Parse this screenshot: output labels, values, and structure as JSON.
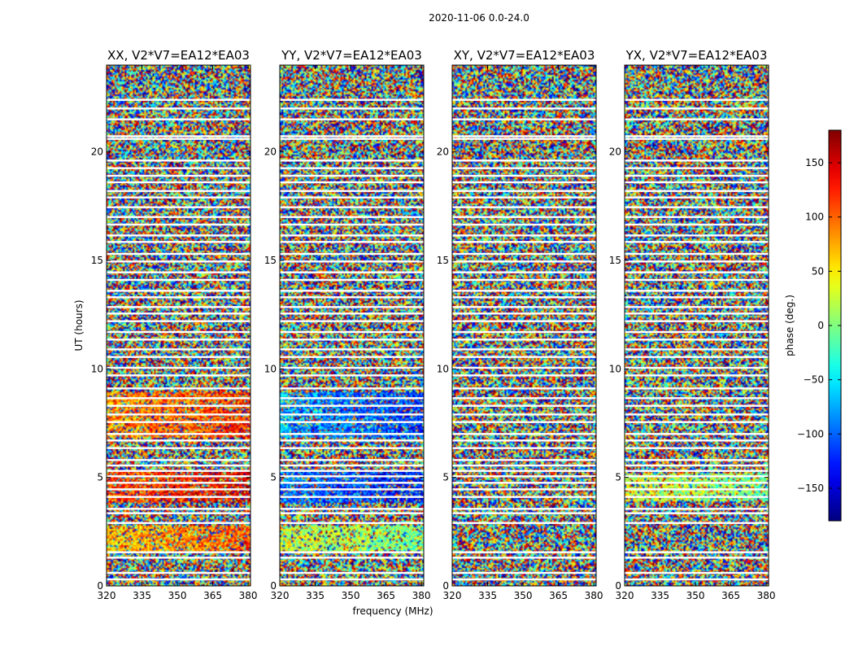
{
  "chart_data": {
    "type": "heatmap",
    "suptitle": "2020-11-06 0.0-24.0",
    "xlabel": "frequency (MHz)",
    "ylabel": "UT (hours)",
    "xlim": [
      320,
      381
    ],
    "ylim": [
      0,
      24
    ],
    "xticks": [
      320,
      335,
      350,
      365,
      380
    ],
    "yticks": [
      0,
      5,
      10,
      15,
      20
    ],
    "panels": [
      {
        "title": "XX, V2*V7=EA12*EA03",
        "coherent": [
          [
            1.6,
            2.8,
            0.35
          ],
          [
            3.8,
            5.3,
            0.6
          ],
          [
            6.8,
            8.9,
            0.45
          ]
        ]
      },
      {
        "title": "YY, V2*V7=EA12*EA03",
        "coherent": [
          [
            1.6,
            2.8,
            0.2
          ],
          [
            3.8,
            5.3,
            -0.5
          ],
          [
            6.8,
            8.9,
            -0.4
          ]
        ]
      },
      {
        "title": "XY, V2*V7=EA12*EA03",
        "coherent": []
      },
      {
        "title": "YX, V2*V7=EA12*EA03",
        "coherent": [
          [
            3.9,
            5.2,
            0.2
          ]
        ]
      }
    ],
    "gaps_hours": [
      0.3,
      0.6,
      1.3,
      1.55,
      2.9,
      3.35,
      3.55,
      4.1,
      4.45,
      4.75,
      5.05,
      5.3,
      5.55,
      5.8,
      6.35,
      6.7,
      7.0,
      7.55,
      7.9,
      8.3,
      8.65,
      9.1,
      9.7,
      10.05,
      10.55,
      10.9,
      11.35,
      11.7,
      12.2,
      12.55,
      12.85,
      13.3,
      13.6,
      14.1,
      14.45,
      14.95,
      15.3,
      15.85,
      16.15,
      16.65,
      17.0,
      17.45,
      17.9,
      18.2,
      18.6,
      18.9,
      19.25,
      19.6,
      20.6,
      20.72,
      21.5,
      22.0,
      22.4
    ],
    "colorbar": {
      "label": "phase (deg.)",
      "range": [
        -180,
        180
      ],
      "ticks": [
        -150,
        -100,
        -50,
        0,
        50,
        100,
        150
      ],
      "tick_labels": [
        "−150",
        "−100",
        "−50",
        "0",
        "50",
        "100",
        "150"
      ],
      "colormap": "jet"
    }
  }
}
